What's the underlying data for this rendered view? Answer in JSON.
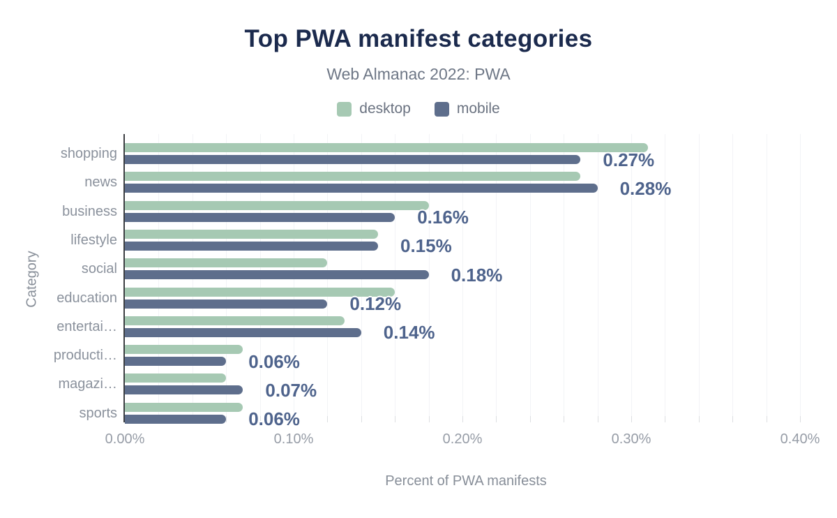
{
  "header": {
    "title": "Top PWA manifest categories",
    "subtitle": "Web Almanac 2022: PWA"
  },
  "legend": [
    {
      "label": "desktop",
      "color": "#a6c9b3"
    },
    {
      "label": "mobile",
      "color": "#5e6e8c"
    }
  ],
  "chart_data": {
    "type": "bar",
    "orientation": "horizontal",
    "title": "Top PWA manifest categories",
    "subtitle": "Web Almanac 2022: PWA",
    "xlabel": "Percent of PWA manifests",
    "ylabel": "Category",
    "categories": [
      "shopping",
      "news",
      "business",
      "lifestyle",
      "social",
      "education",
      "entertai…",
      "producti…",
      "magazi…",
      "sports"
    ],
    "series": [
      {
        "name": "desktop",
        "color": "#a6c9b3",
        "values": [
          0.31,
          0.27,
          0.18,
          0.15,
          0.12,
          0.16,
          0.13,
          0.07,
          0.06,
          0.07
        ]
      },
      {
        "name": "mobile",
        "color": "#5e6e8c",
        "values": [
          0.27,
          0.28,
          0.16,
          0.15,
          0.18,
          0.12,
          0.14,
          0.06,
          0.07,
          0.06
        ]
      }
    ],
    "bar_labels": [
      "0.27%",
      "0.28%",
      "0.16%",
      "0.15%",
      "0.18%",
      "0.12%",
      "0.14%",
      "0.06%",
      "0.07%",
      "0.06%"
    ],
    "bar_labels_series": "mobile",
    "x_ticks": [
      "0.00%",
      "0.10%",
      "0.20%",
      "0.30%",
      "0.40%"
    ],
    "xlim": [
      0,
      0.4
    ],
    "x_minor_grid_step": 0.02,
    "grid": "vertical-minor",
    "legend_position": "top"
  },
  "colors": {
    "background": "#ffffff",
    "title": "#1b2a4d",
    "subtitle": "#6e7786",
    "legend_text": "#6a7280",
    "category_label": "#8a919c",
    "tick_label": "#969ca6",
    "axis_title": "#878e98",
    "value_label": "#4e638c",
    "axis_line": "#3b3e42",
    "gridline": "#f2f3f6"
  }
}
